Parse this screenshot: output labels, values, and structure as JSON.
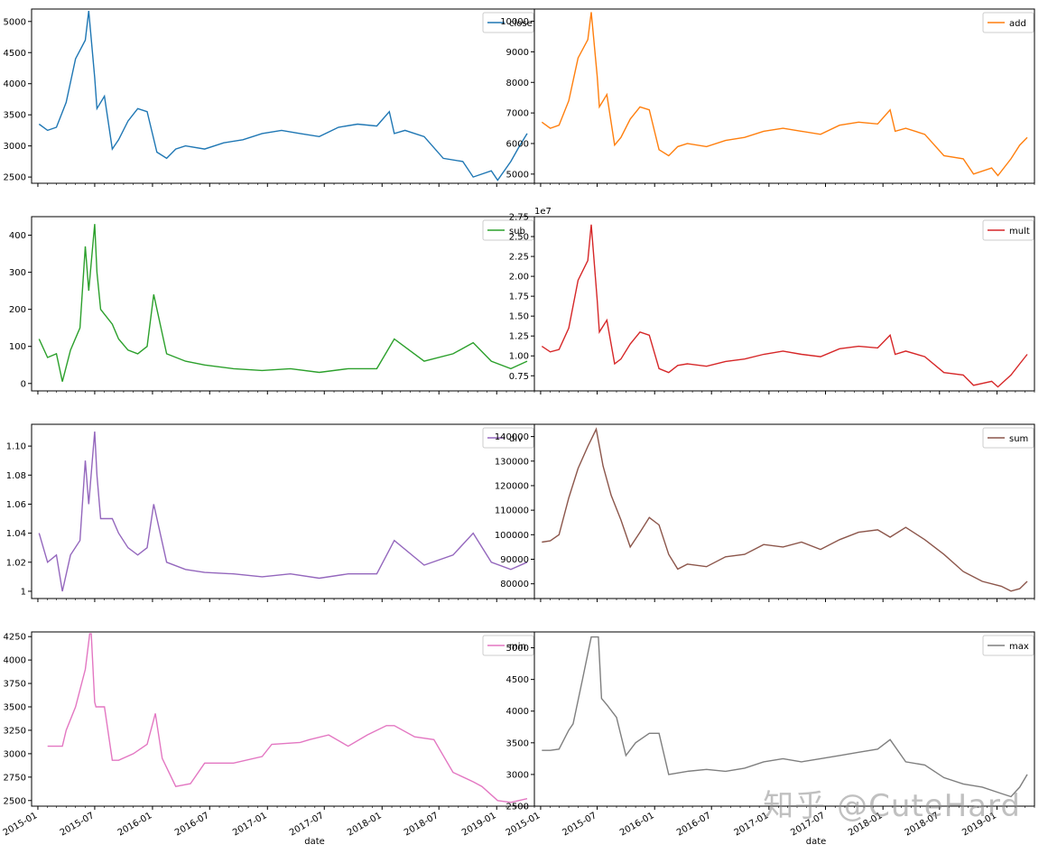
{
  "watermark": "知乎 @CuteHard",
  "xlabel": "date",
  "x_ticks": [
    "2015-01",
    "2015-07",
    "2016-01",
    "2016-07",
    "2017-01",
    "2017-07",
    "2018-01",
    "2018-07",
    "2019-01"
  ],
  "chart_data": [
    {
      "type": "line",
      "name": "close",
      "color": "#1f77b4",
      "ylim": [
        2400,
        5200
      ],
      "yticks": [
        2500,
        3000,
        3500,
        4000,
        4500,
        5000
      ],
      "legend": "top-right",
      "x": [
        "2015-01-05",
        "2015-02-01",
        "2015-03-01",
        "2015-04-01",
        "2015-05-01",
        "2015-06-01",
        "2015-06-12",
        "2015-07-01",
        "2015-07-08",
        "2015-08-01",
        "2015-08-26",
        "2015-09-15",
        "2015-10-15",
        "2015-11-15",
        "2015-12-15",
        "2016-01-15",
        "2016-02-15",
        "2016-03-15",
        "2016-04-15",
        "2016-06-15",
        "2016-08-15",
        "2016-10-15",
        "2016-12-15",
        "2017-02-15",
        "2017-04-15",
        "2017-06-15",
        "2017-08-15",
        "2017-10-15",
        "2017-12-15",
        "2018-01-24",
        "2018-02-09",
        "2018-03-15",
        "2018-05-15",
        "2018-07-15",
        "2018-09-15",
        "2018-10-18",
        "2018-12-15",
        "2019-01-04",
        "2019-02-15",
        "2019-03-15",
        "2019-04-08"
      ],
      "y": [
        3350,
        3250,
        3300,
        3700,
        4400,
        4700,
        5170,
        4100,
        3600,
        3800,
        2950,
        3100,
        3400,
        3600,
        3550,
        2900,
        2800,
        2950,
        3000,
        2950,
        3050,
        3100,
        3200,
        3250,
        3200,
        3150,
        3300,
        3350,
        3320,
        3550,
        3200,
        3250,
        3150,
        2800,
        2750,
        2500,
        2600,
        2450,
        2750,
        3000,
        3200
      ]
    },
    {
      "type": "line",
      "name": "add",
      "color": "#ff7f0e",
      "ylim": [
        4700,
        10400
      ],
      "yticks": [
        5000,
        6000,
        7000,
        8000,
        9000,
        10000
      ],
      "legend": "top-right",
      "x": [
        "2015-01-05",
        "2015-02-01",
        "2015-03-01",
        "2015-04-01",
        "2015-05-01",
        "2015-06-01",
        "2015-06-12",
        "2015-07-01",
        "2015-07-08",
        "2015-08-01",
        "2015-08-26",
        "2015-09-15",
        "2015-10-15",
        "2015-11-15",
        "2015-12-15",
        "2016-01-15",
        "2016-02-15",
        "2016-03-15",
        "2016-04-15",
        "2016-06-15",
        "2016-08-15",
        "2016-10-15",
        "2016-12-15",
        "2017-02-15",
        "2017-04-15",
        "2017-06-15",
        "2017-08-15",
        "2017-10-15",
        "2017-12-15",
        "2018-01-24",
        "2018-02-09",
        "2018-03-15",
        "2018-05-15",
        "2018-07-15",
        "2018-09-15",
        "2018-10-18",
        "2018-12-15",
        "2019-01-04",
        "2019-02-15",
        "2019-03-15",
        "2019-04-08"
      ],
      "y": [
        6700,
        6500,
        6600,
        7400,
        8800,
        9400,
        10300,
        8200,
        7200,
        7600,
        5950,
        6200,
        6800,
        7200,
        7100,
        5800,
        5600,
        5900,
        6000,
        5900,
        6100,
        6200,
        6400,
        6500,
        6400,
        6300,
        6600,
        6700,
        6640,
        7100,
        6400,
        6500,
        6300,
        5600,
        5500,
        5000,
        5200,
        4950,
        5500,
        5950,
        6200
      ]
    },
    {
      "type": "line",
      "name": "sub",
      "color": "#2ca02c",
      "ylim": [
        -20,
        450
      ],
      "yticks": [
        0,
        100,
        200,
        300,
        400
      ],
      "legend": "top-right",
      "x": [
        "2015-01-05",
        "2015-02-01",
        "2015-03-01",
        "2015-03-20",
        "2015-04-15",
        "2015-05-15",
        "2015-06-01",
        "2015-06-12",
        "2015-07-01",
        "2015-07-08",
        "2015-07-20",
        "2015-08-26",
        "2015-09-15",
        "2015-10-15",
        "2015-11-15",
        "2015-12-15",
        "2016-01-05",
        "2016-02-15",
        "2016-04-15",
        "2016-06-15",
        "2016-09-15",
        "2016-12-15",
        "2017-03-15",
        "2017-06-15",
        "2017-09-15",
        "2017-12-15",
        "2018-02-09",
        "2018-05-15",
        "2018-08-15",
        "2018-10-18",
        "2018-12-15",
        "2019-02-15",
        "2019-04-08"
      ],
      "y": [
        120,
        70,
        80,
        5,
        90,
        150,
        370,
        250,
        430,
        300,
        200,
        160,
        120,
        90,
        80,
        100,
        240,
        80,
        60,
        50,
        40,
        35,
        40,
        30,
        40,
        40,
        120,
        60,
        80,
        110,
        60,
        40,
        60
      ]
    },
    {
      "type": "line",
      "name": "mult",
      "color": "#d62728",
      "ylim": [
        5600000,
        27500000
      ],
      "yticks": [
        7500000,
        10000000,
        12500000,
        15000000,
        17500000,
        20000000,
        22500000,
        25000000,
        27500000
      ],
      "ytick_labels": [
        "0.75",
        "1.00",
        "1.25",
        "1.50",
        "1.75",
        "2.00",
        "2.25",
        "2.50",
        "2.75"
      ],
      "offset": "1e7",
      "legend": "top-right",
      "x": [
        "2015-01-05",
        "2015-02-01",
        "2015-03-01",
        "2015-04-01",
        "2015-05-01",
        "2015-06-01",
        "2015-06-12",
        "2015-07-01",
        "2015-07-08",
        "2015-08-01",
        "2015-08-26",
        "2015-09-15",
        "2015-10-15",
        "2015-11-15",
        "2015-12-15",
        "2016-01-15",
        "2016-02-15",
        "2016-03-15",
        "2016-04-15",
        "2016-06-15",
        "2016-08-15",
        "2016-10-15",
        "2016-12-15",
        "2017-02-15",
        "2017-04-15",
        "2017-06-15",
        "2017-08-15",
        "2017-10-15",
        "2017-12-15",
        "2018-01-24",
        "2018-02-09",
        "2018-03-15",
        "2018-05-15",
        "2018-07-15",
        "2018-09-15",
        "2018-10-18",
        "2018-12-15",
        "2019-01-04",
        "2019-02-15",
        "2019-03-15",
        "2019-04-08"
      ],
      "y": [
        11200000,
        10500000,
        10800000,
        13500000,
        19500000,
        22000000,
        26500000,
        17000000,
        13000000,
        14500000,
        9000000,
        9600000,
        11500000,
        13000000,
        12600000,
        8400000,
        7900000,
        8800000,
        9000000,
        8700000,
        9300000,
        9600000,
        10200000,
        10600000,
        10200000,
        9900000,
        10900000,
        11200000,
        11000000,
        12600000,
        10200000,
        10600000,
        9900000,
        7900000,
        7600000,
        6300000,
        6800000,
        6100000,
        7600000,
        9000000,
        10200000
      ]
    },
    {
      "type": "line",
      "name": "div",
      "color": "#9467bd",
      "ylim": [
        0.995,
        1.115
      ],
      "yticks": [
        1.0,
        1.02,
        1.04,
        1.06,
        1.08,
        1.1
      ],
      "legend": "top-right",
      "x": [
        "2015-01-05",
        "2015-02-01",
        "2015-03-01",
        "2015-03-20",
        "2015-04-15",
        "2015-05-15",
        "2015-06-01",
        "2015-06-12",
        "2015-07-01",
        "2015-07-08",
        "2015-07-20",
        "2015-08-26",
        "2015-09-15",
        "2015-10-15",
        "2015-11-15",
        "2015-12-15",
        "2016-01-05",
        "2016-02-15",
        "2016-04-15",
        "2016-06-15",
        "2016-09-15",
        "2016-12-15",
        "2017-03-15",
        "2017-06-15",
        "2017-09-15",
        "2017-12-15",
        "2018-02-09",
        "2018-05-15",
        "2018-08-15",
        "2018-10-18",
        "2018-12-15",
        "2019-02-15",
        "2019-04-08"
      ],
      "y": [
        1.04,
        1.02,
        1.025,
        1.0,
        1.025,
        1.035,
        1.09,
        1.06,
        1.11,
        1.08,
        1.05,
        1.05,
        1.04,
        1.03,
        1.025,
        1.03,
        1.06,
        1.02,
        1.015,
        1.013,
        1.012,
        1.01,
        1.012,
        1.009,
        1.012,
        1.012,
        1.035,
        1.018,
        1.025,
        1.04,
        1.02,
        1.015,
        1.02
      ]
    },
    {
      "type": "line",
      "name": "sum",
      "color": "#8c564b",
      "ylim": [
        74000,
        145000
      ],
      "yticks": [
        80000,
        90000,
        100000,
        110000,
        120000,
        130000,
        140000
      ],
      "legend": "top-right",
      "x": [
        "2015-01-05",
        "2015-02-01",
        "2015-03-01",
        "2015-04-01",
        "2015-05-01",
        "2015-06-01",
        "2015-06-28",
        "2015-07-20",
        "2015-08-15",
        "2015-09-15",
        "2015-10-15",
        "2015-11-15",
        "2015-12-15",
        "2016-01-15",
        "2016-02-15",
        "2016-03-15",
        "2016-04-15",
        "2016-06-15",
        "2016-08-15",
        "2016-10-15",
        "2016-12-15",
        "2017-02-15",
        "2017-04-15",
        "2017-06-15",
        "2017-08-15",
        "2017-10-15",
        "2017-12-15",
        "2018-01-24",
        "2018-03-15",
        "2018-05-15",
        "2018-07-15",
        "2018-09-15",
        "2018-11-15",
        "2019-01-15",
        "2019-02-15",
        "2019-03-15",
        "2019-04-08"
      ],
      "y": [
        97000,
        97500,
        100000,
        115000,
        127000,
        136000,
        143000,
        128000,
        116000,
        106000,
        95000,
        101000,
        107000,
        104000,
        92000,
        86000,
        88000,
        87000,
        91000,
        92000,
        96000,
        95000,
        97000,
        94000,
        98000,
        101000,
        102000,
        99000,
        103000,
        98000,
        92000,
        85000,
        81000,
        79000,
        77000,
        78000,
        81000
      ]
    },
    {
      "type": "line",
      "name": "min",
      "color": "#e377c2",
      "ylim": [
        2440,
        4300
      ],
      "yticks": [
        2500,
        2750,
        3000,
        3250,
        3500,
        3750,
        4000,
        4250
      ],
      "legend": "top-right",
      "x": [
        "2015-02-01",
        "2015-03-01",
        "2015-03-20",
        "2015-04-01",
        "2015-05-01",
        "2015-06-01",
        "2015-06-15",
        "2015-06-20",
        "2015-07-01",
        "2015-07-05",
        "2015-08-01",
        "2015-08-26",
        "2015-09-15",
        "2015-11-01",
        "2015-12-15",
        "2016-01-10",
        "2016-02-01",
        "2016-03-15",
        "2016-05-01",
        "2016-06-15",
        "2016-09-15",
        "2016-12-15",
        "2017-01-15",
        "2017-04-15",
        "2017-05-15",
        "2017-07-15",
        "2017-09-15",
        "2017-11-15",
        "2018-01-15",
        "2018-02-09",
        "2018-04-15",
        "2018-06-15",
        "2018-08-15",
        "2018-10-18",
        "2018-11-15",
        "2019-01-04",
        "2019-02-15",
        "2019-04-08"
      ],
      "y": [
        3080,
        3080,
        3080,
        3250,
        3500,
        3900,
        4280,
        4280,
        3550,
        3500,
        3500,
        2930,
        2930,
        3000,
        3100,
        3430,
        2950,
        2650,
        2680,
        2900,
        2900,
        2970,
        3100,
        3120,
        3150,
        3200,
        3080,
        3200,
        3300,
        3300,
        3180,
        3150,
        2800,
        2700,
        2650,
        2500,
        2480,
        2520
      ]
    },
    {
      "type": "line",
      "name": "max",
      "color": "#7f7f7f",
      "ylim": [
        2500,
        5250
      ],
      "yticks": [
        2500,
        3000,
        3500,
        4000,
        4500,
        5000
      ],
      "legend": "top-right",
      "x": [
        "2015-01-05",
        "2015-02-01",
        "2015-03-01",
        "2015-04-01",
        "2015-04-15",
        "2015-05-15",
        "2015-06-12",
        "2015-07-05",
        "2015-07-15",
        "2015-08-01",
        "2015-09-01",
        "2015-10-01",
        "2015-11-01",
        "2015-12-15",
        "2016-01-15",
        "2016-02-15",
        "2016-04-15",
        "2016-06-15",
        "2016-08-15",
        "2016-10-15",
        "2016-12-15",
        "2017-02-15",
        "2017-04-15",
        "2017-06-15",
        "2017-08-15",
        "2017-10-15",
        "2017-12-15",
        "2018-01-24",
        "2018-03-15",
        "2018-05-15",
        "2018-07-15",
        "2018-09-15",
        "2018-11-15",
        "2019-01-15",
        "2019-02-15",
        "2019-03-15",
        "2019-04-08"
      ],
      "y": [
        3380,
        3380,
        3400,
        3700,
        3800,
        4500,
        5170,
        5170,
        4200,
        4100,
        3900,
        3300,
        3500,
        3650,
        3650,
        3000,
        3050,
        3080,
        3050,
        3100,
        3200,
        3250,
        3200,
        3250,
        3300,
        3350,
        3400,
        3550,
        3200,
        3150,
        2950,
        2850,
        2800,
        2700,
        2650,
        2800,
        3000
      ]
    }
  ]
}
